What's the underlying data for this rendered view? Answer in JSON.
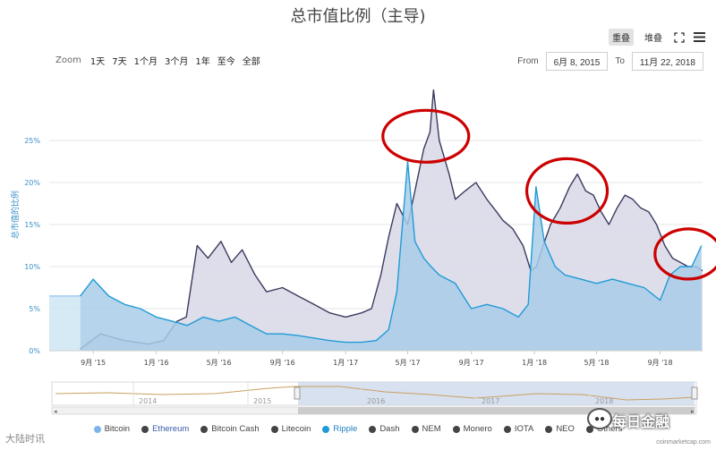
{
  "title": "总市值比例（主导)",
  "view_buttons": {
    "overlap": "重叠",
    "stacked": "堆叠"
  },
  "icons": {
    "fullscreen": "fullscreen-icon",
    "menu": "menu-icon"
  },
  "zoom": {
    "label": "Zoom",
    "options": [
      "1天",
      "7天",
      "1个月",
      "3个月",
      "1年",
      "至今",
      "全部"
    ]
  },
  "range": {
    "from_label": "From",
    "from_value": "6月 8, 2015",
    "to_label": "To",
    "to_value": "11月 22, 2018"
  },
  "navigator": {
    "years": [
      "2014",
      "2015",
      "2016",
      "2017",
      "2018"
    ]
  },
  "legend": [
    {
      "name": "Bitcoin",
      "color": "#7cb5ec"
    },
    {
      "name": "Ethereum",
      "color": "#434348"
    },
    {
      "name": "Bitcoin Cash",
      "color": "#444444"
    },
    {
      "name": "Litecoin",
      "color": "#444444"
    },
    {
      "name": "Ripple",
      "color": "#1f9bd6"
    },
    {
      "name": "Dash",
      "color": "#444444"
    },
    {
      "name": "NEM",
      "color": "#444444"
    },
    {
      "name": "Monero",
      "color": "#444444"
    },
    {
      "name": "IOTA",
      "color": "#444444"
    },
    {
      "name": "NEO",
      "color": "#444444"
    },
    {
      "name": "Others",
      "color": "#444444"
    }
  ],
  "watermarks": {
    "left": "大陆时讯",
    "right": "每日金融",
    "credit": "coinmarketcap.com"
  },
  "colors": {
    "ethereum": "#3a3a5e",
    "ethereum_fill": "#d8d8e8",
    "ripple": "#1f9bd6",
    "ripple_fill": "#a9cde8",
    "bitcoin_fill": "#cfe6f5",
    "annotation": "#cc0000"
  },
  "chart_data": {
    "type": "area",
    "title": "总市值比例（主导)",
    "ylabel": "总市值的比例",
    "ylim": [
      0,
      30
    ],
    "yticks": [
      "0%",
      "5%",
      "10%",
      "15%",
      "20%",
      "25%"
    ],
    "xticks": [
      "9月 '15",
      "1月 '16",
      "5月 '16",
      "9月 '16",
      "1月 '17",
      "5月 '17",
      "9月 '17",
      "1月 '18",
      "5月 '18",
      "9月 '18"
    ],
    "grid": true,
    "series": [
      {
        "name": "Ethereum",
        "x": [
          "2015-08-07",
          "2015-09-15",
          "2015-11-01",
          "2015-12-15",
          "2016-01-15",
          "2016-02-10",
          "2016-02-28",
          "2016-03-20",
          "2016-04-10",
          "2016-05-05",
          "2016-05-25",
          "2016-06-15",
          "2016-07-10",
          "2016-08-01",
          "2016-09-01",
          "2016-10-01",
          "2016-11-01",
          "2016-12-01",
          "2017-01-01",
          "2017-02-01",
          "2017-02-20",
          "2017-03-10",
          "2017-03-25",
          "2017-04-10",
          "2017-05-01",
          "2017-05-15",
          "2017-06-01",
          "2017-06-13",
          "2017-06-20",
          "2017-07-01",
          "2017-07-20",
          "2017-08-01",
          "2017-08-20",
          "2017-09-10",
          "2017-10-01",
          "2017-10-20",
          "2017-11-01",
          "2017-11-20",
          "2017-12-10",
          "2017-12-25",
          "2018-01-05",
          "2018-01-15",
          "2018-02-01",
          "2018-02-20",
          "2018-03-10",
          "2018-03-25",
          "2018-04-10",
          "2018-04-25",
          "2018-05-10",
          "2018-05-25",
          "2018-06-10",
          "2018-06-25",
          "2018-07-10",
          "2018-07-25",
          "2018-08-10",
          "2018-08-25",
          "2018-09-10",
          "2018-09-25",
          "2018-10-10",
          "2018-10-25",
          "2018-11-10",
          "2018-11-22"
        ],
        "values": [
          0.2,
          2.0,
          1.2,
          0.8,
          1.2,
          3.5,
          4.0,
          12.5,
          11.0,
          13.0,
          10.5,
          12.0,
          9.0,
          7.0,
          7.5,
          6.5,
          5.5,
          4.5,
          4.0,
          4.5,
          5.0,
          9.0,
          13.5,
          17.5,
          15.0,
          19.0,
          24.0,
          26.0,
          31.0,
          25.0,
          21.0,
          18.0,
          19.0,
          20.0,
          18.0,
          16.5,
          15.5,
          14.5,
          12.5,
          9.5,
          10.0,
          12.0,
          15.0,
          17.0,
          19.5,
          21.0,
          19.0,
          18.5,
          16.5,
          15.0,
          17.0,
          18.5,
          18.0,
          17.0,
          16.5,
          15.0,
          12.5,
          11.0,
          10.5,
          10.0,
          10.0,
          9.5
        ]
      },
      {
        "name": "Ripple",
        "x": [
          "2015-08-07",
          "2015-09-01",
          "2015-10-01",
          "2015-11-01",
          "2015-12-01",
          "2016-01-01",
          "2016-02-01",
          "2016-03-01",
          "2016-04-01",
          "2016-05-01",
          "2016-06-01",
          "2016-07-01",
          "2016-08-01",
          "2016-09-01",
          "2016-10-01",
          "2016-11-01",
          "2016-12-01",
          "2017-01-01",
          "2017-02-01",
          "2017-03-01",
          "2017-03-25",
          "2017-04-10",
          "2017-05-01",
          "2017-05-15",
          "2017-06-01",
          "2017-06-15",
          "2017-07-01",
          "2017-08-01",
          "2017-09-01",
          "2017-10-01",
          "2017-11-01",
          "2017-12-01",
          "2017-12-20",
          "2018-01-04",
          "2018-01-20",
          "2018-02-10",
          "2018-03-01",
          "2018-04-01",
          "2018-05-01",
          "2018-06-01",
          "2018-07-01",
          "2018-08-01",
          "2018-09-01",
          "2018-09-20",
          "2018-10-10",
          "2018-11-01",
          "2018-11-20"
        ],
        "values": [
          6.5,
          8.5,
          6.5,
          5.5,
          5.0,
          4.0,
          3.5,
          3.0,
          4.0,
          3.5,
          4.0,
          3.0,
          2.0,
          2.0,
          1.8,
          1.5,
          1.2,
          1.0,
          1.0,
          1.2,
          2.5,
          7.0,
          22.5,
          13.0,
          11.0,
          10.0,
          9.0,
          8.0,
          5.0,
          5.5,
          5.0,
          4.0,
          5.5,
          19.5,
          13.0,
          10.0,
          9.0,
          8.5,
          8.0,
          8.5,
          8.0,
          7.5,
          6.0,
          9.0,
          10.0,
          10.0,
          12.5
        ]
      },
      {
        "name": "Bitcoin",
        "x": [
          "2015-06-08",
          "2015-08-07"
        ],
        "values": [
          6.5,
          6.5
        ]
      }
    ],
    "annotations": [
      "red-circle-2017-06",
      "red-circle-2018-03",
      "red-circle-2018-11"
    ]
  }
}
